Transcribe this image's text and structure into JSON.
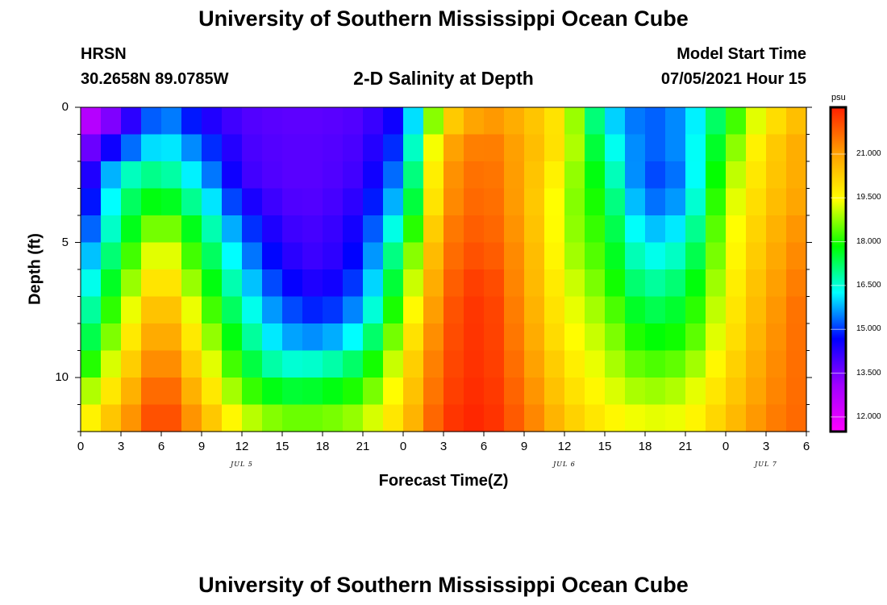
{
  "page": {
    "title_top": "University of Southern Mississippi Ocean Cube",
    "title_bottom": "University of Southern Mississippi Ocean Cube",
    "station": "HRSN",
    "coords": "30.2658N  89.0785W",
    "model_start_label": "Model Start Time",
    "model_start_value": "07/05/2021 Hour 15"
  },
  "chart_data": {
    "type": "heatmap",
    "title": "2-D Salinity at Depth",
    "xlabel": "Forecast Time(Z)",
    "ylabel": "Depth (ft)",
    "x_ticks": [
      "0",
      "3",
      "6",
      "9",
      "12",
      "15",
      "18",
      "21",
      "0",
      "3",
      "6",
      "9",
      "12",
      "15",
      "18",
      "21",
      "0",
      "3",
      "6"
    ],
    "x_range_hours": [
      0,
      54
    ],
    "date_labels": [
      {
        "label": "JUL 5",
        "hour": 12
      },
      {
        "label": "JUL 6",
        "hour": 36
      },
      {
        "label": "JUL 7",
        "hour": 51
      }
    ],
    "y_ticks": [
      "0",
      "5",
      "10"
    ],
    "y_range_ft": [
      0,
      12
    ],
    "colorbar": {
      "unit": "psu",
      "min": 11.5,
      "max": 22.6,
      "tick_labels": [
        "12.000",
        "13.500",
        "15.000",
        "16.500",
        "18.000",
        "19.500",
        "21.000"
      ],
      "tick_values": [
        12.0,
        13.5,
        15.0,
        16.5,
        18.0,
        19.5,
        21.0
      ],
      "colors": [
        "#ff00ff",
        "#a000ff",
        "#0000ff",
        "#00ffff",
        "#00ff00",
        "#ffff00",
        "#ffa000",
        "#ff2000"
      ]
    },
    "depth_levels_ft": [
      0,
      1,
      2,
      3,
      4,
      5,
      6,
      7,
      8,
      9,
      10,
      11,
      12
    ],
    "hour_columns": [
      0,
      3,
      6,
      9,
      12,
      15,
      18,
      21,
      24,
      27,
      30,
      33,
      36,
      39,
      42,
      45,
      48,
      51,
      54
    ],
    "salinity_psu": [
      [
        12.0,
        13.5,
        15.5,
        14.0,
        13.8,
        13.7,
        13.7,
        13.8,
        14.5,
        19.5,
        21.0,
        20.5,
        19.5,
        16.0,
        15.0,
        15.5,
        17.5,
        19.5,
        20.5
      ],
      [
        12.8,
        14.0,
        16.0,
        15.0,
        14.0,
        13.8,
        13.8,
        14.0,
        15.0,
        20.5,
        21.5,
        20.8,
        19.8,
        16.5,
        15.3,
        15.8,
        18.0,
        20.0,
        21.0
      ],
      [
        13.5,
        16.0,
        16.8,
        15.5,
        14.0,
        13.8,
        13.8,
        14.0,
        15.5,
        21.0,
        21.8,
        20.8,
        19.5,
        17.0,
        15.0,
        15.5,
        18.5,
        20.2,
        21.0
      ],
      [
        13.8,
        17.0,
        17.5,
        16.2,
        14.2,
        13.8,
        13.8,
        14.2,
        16.0,
        21.0,
        21.8,
        20.8,
        19.0,
        17.5,
        15.0,
        15.5,
        18.8,
        20.2,
        21.0
      ],
      [
        14.3,
        17.0,
        18.5,
        17.0,
        15.0,
        14.0,
        13.9,
        14.5,
        16.5,
        21.2,
        22.0,
        20.8,
        19.0,
        17.8,
        15.5,
        16.0,
        19.0,
        20.5,
        21.2
      ],
      [
        15.0,
        17.5,
        19.5,
        17.5,
        15.5,
        14.2,
        14.0,
        14.8,
        17.5,
        21.5,
        22.0,
        21.0,
        19.0,
        18.0,
        16.0,
        16.5,
        19.2,
        20.5,
        21.5
      ],
      [
        15.5,
        18.0,
        20.0,
        18.0,
        16.0,
        14.5,
        14.0,
        15.0,
        18.0,
        21.5,
        22.3,
        21.0,
        19.2,
        18.2,
        16.5,
        17.0,
        19.2,
        20.8,
        21.5
      ],
      [
        16.0,
        18.5,
        20.8,
        18.5,
        16.5,
        15.0,
        14.5,
        15.5,
        18.5,
        21.8,
        22.5,
        21.0,
        19.5,
        18.5,
        17.0,
        17.5,
        19.5,
        20.8,
        21.8
      ],
      [
        16.5,
        19.0,
        21.2,
        19.0,
        17.0,
        15.5,
        15.0,
        16.0,
        19.0,
        21.8,
        22.5,
        21.2,
        19.5,
        18.8,
        17.5,
        17.8,
        19.5,
        21.0,
        21.8
      ],
      [
        17.0,
        19.5,
        21.5,
        19.5,
        17.5,
        16.0,
        16.0,
        17.0,
        19.5,
        22.0,
        22.5,
        21.2,
        19.8,
        19.0,
        18.0,
        18.2,
        19.8,
        21.0,
        21.8
      ],
      [
        18.0,
        20.0,
        22.0,
        20.0,
        18.0,
        17.0,
        17.2,
        17.8,
        19.8,
        22.0,
        22.5,
        21.5,
        20.0,
        19.2,
        18.5,
        18.8,
        20.0,
        21.2,
        21.8
      ],
      [
        19.0,
        20.5,
        22.3,
        20.5,
        18.8,
        18.0,
        18.0,
        18.5,
        20.0,
        22.2,
        22.6,
        21.5,
        20.2,
        19.5,
        19.0,
        19.2,
        20.2,
        21.2,
        21.8
      ],
      [
        19.5,
        21.0,
        22.5,
        21.0,
        19.5,
        19.0,
        19.0,
        19.2,
        20.3,
        22.3,
        22.6,
        21.8,
        20.5,
        19.8,
        19.5,
        19.5,
        20.5,
        21.5,
        21.8
      ]
    ]
  }
}
